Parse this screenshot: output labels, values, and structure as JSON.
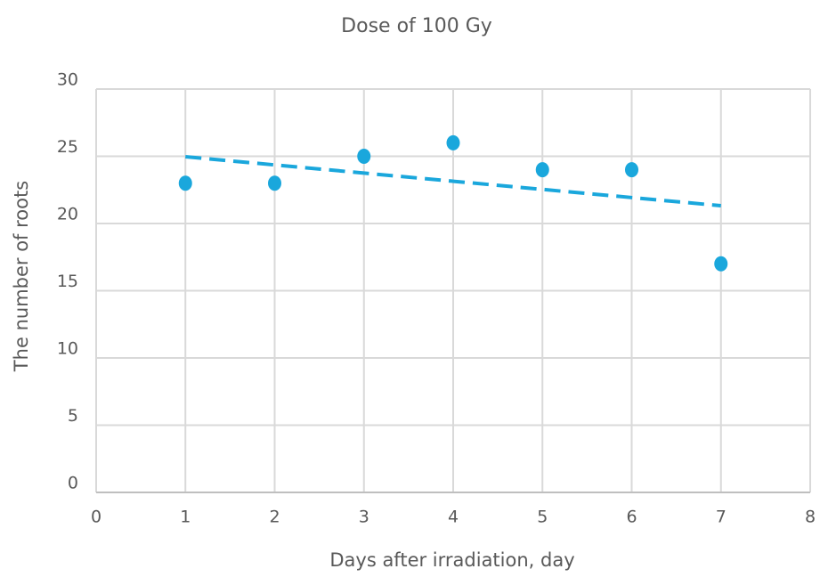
{
  "chart_data": {
    "type": "scatter",
    "title": "Dose of 100 Gy",
    "x_label": "Days after irradiation, day",
    "y_label": "The number of roots",
    "x": [
      1,
      2,
      3,
      4,
      5,
      6,
      7
    ],
    "values": [
      23,
      23,
      25,
      26,
      24,
      24,
      17
    ],
    "color": "#1aa7dc",
    "trendline": "linear",
    "xlim": [
      0,
      8
    ],
    "xticks": [
      0,
      1,
      2,
      3,
      4,
      5,
      6,
      7,
      8
    ],
    "ylim": [
      0,
      30
    ],
    "yticks": [
      0,
      5,
      10,
      15,
      20,
      25,
      30
    ],
    "grid": true
  }
}
